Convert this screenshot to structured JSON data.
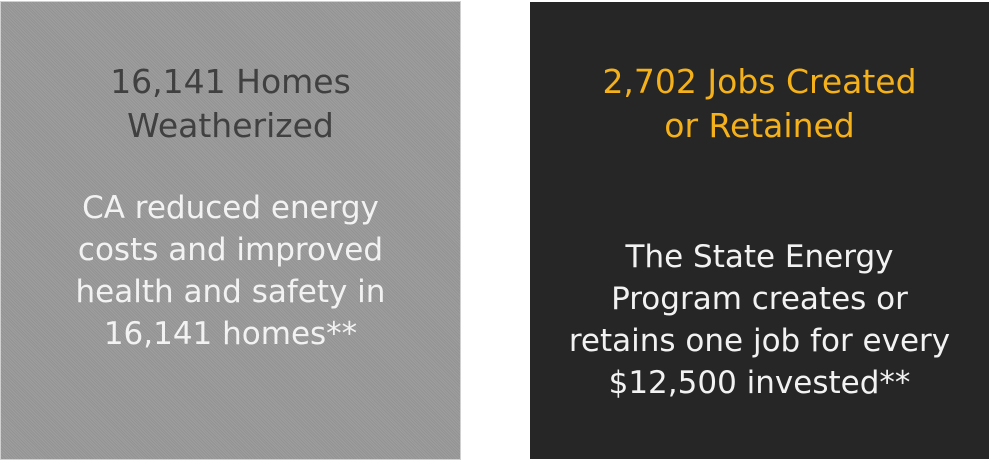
{
  "cards": [
    {
      "title_lines": [
        "16,141 Homes",
        "Weatherized"
      ],
      "body_lines": [
        "CA reduced energy",
        "costs and improved",
        "health and safety in",
        "16,141 homes**"
      ],
      "background": "#999999",
      "title_color": "#404040",
      "text_color": "#f2f2f2"
    },
    {
      "title_lines": [
        "2,702 Jobs Created",
        "or Retained"
      ],
      "body_lines": [
        "The State Energy",
        "Program creates or",
        "retains one job for every",
        "$12,500 invested**"
      ],
      "background": "#262626",
      "title_color": "#f5b11a",
      "text_color": "#f2f2f2"
    }
  ]
}
